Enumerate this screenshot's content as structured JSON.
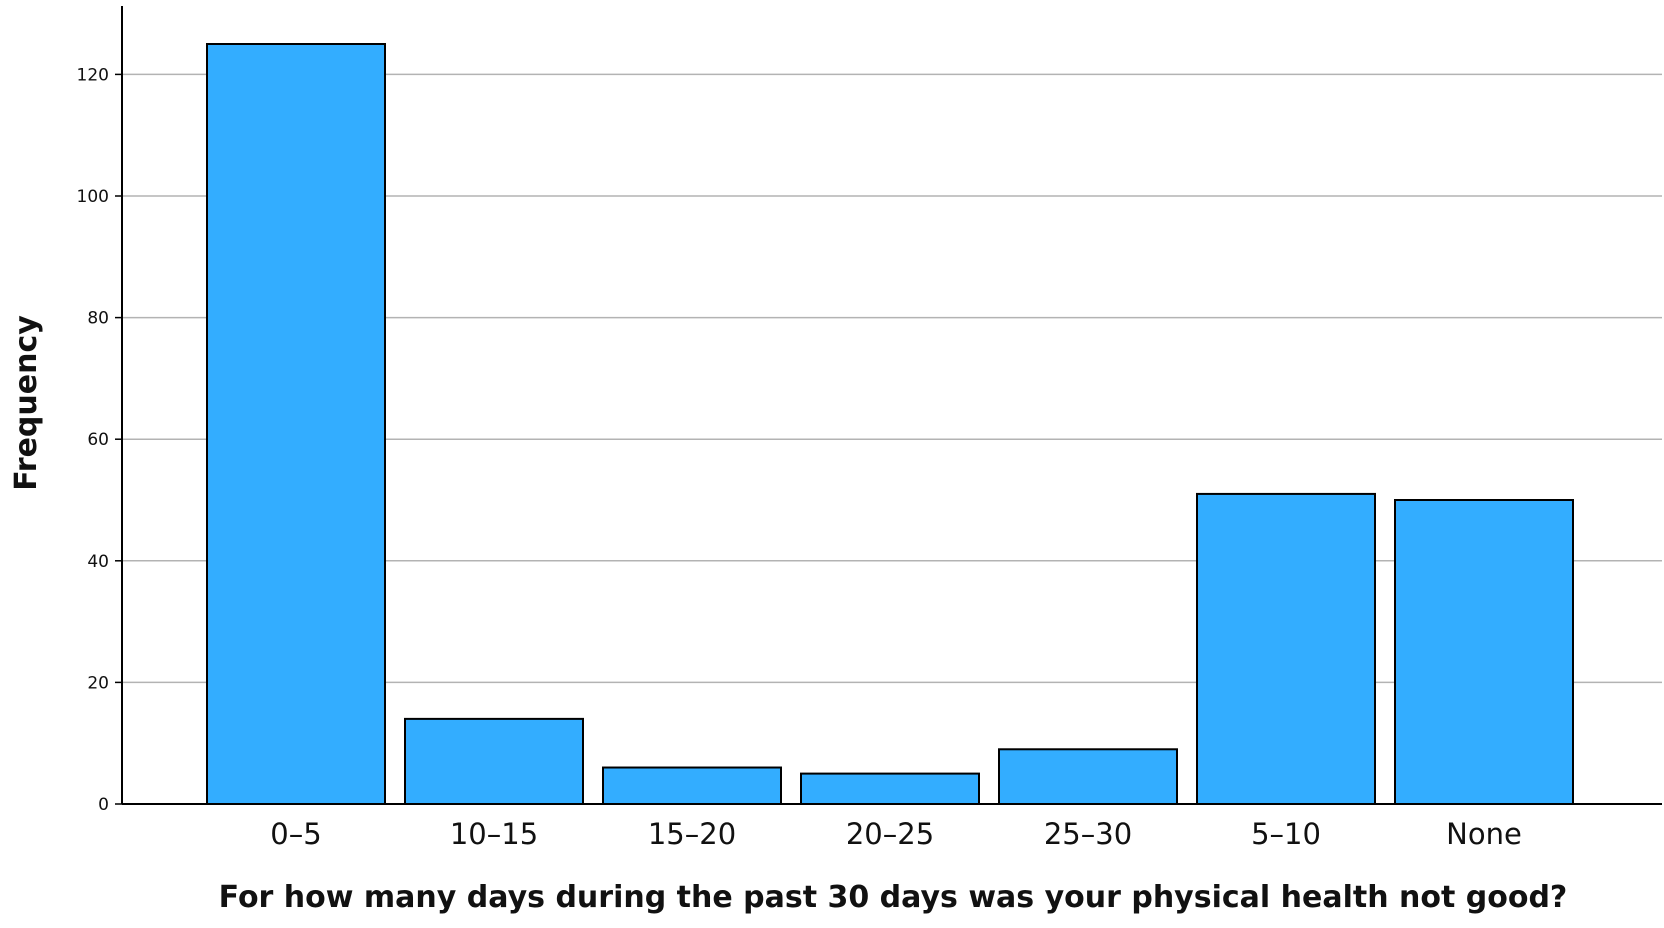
{
  "chart_data": {
    "type": "bar",
    "title": "",
    "xlabel": "For how many days during the past 30 days was your physical health not good?",
    "ylabel": "Frequency",
    "categories": [
      "0-5",
      "10-15",
      "15-20",
      "20-25",
      "25-30",
      "5-10",
      "None"
    ],
    "values": [
      125,
      14,
      6,
      5,
      9,
      51,
      50
    ],
    "ylim": [
      0,
      131
    ],
    "yticks": [
      "0",
      "20",
      "40",
      "60",
      "80",
      "100",
      "120"
    ],
    "grid": true,
    "legend": "none",
    "colors": {
      "bar_fill": "#33adff",
      "bar_stroke": "#000000",
      "grid": "#b3b3b3",
      "axis": "#000000"
    }
  }
}
